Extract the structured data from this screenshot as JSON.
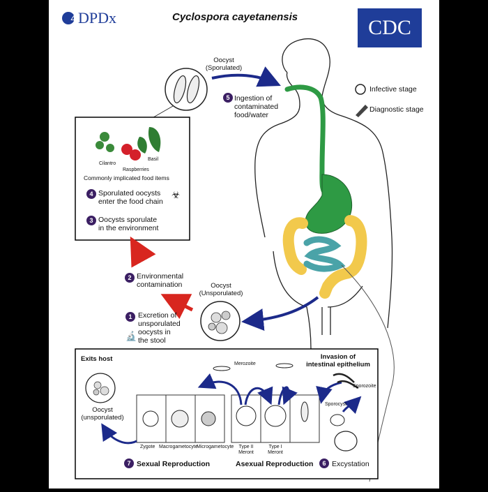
{
  "header": {
    "logo_text": "DPDx",
    "logo_digit": "4",
    "title": "Cyclospora cayetanensis",
    "cdc_logo": "CDC"
  },
  "legend": {
    "infective": "Infective stage",
    "diagnostic": "Diagnostic stage"
  },
  "oocyst_sporulated": "Oocyst\n(Sporulated)",
  "oocyst_unsporulated": "Oocyst\n(Unsporulated)",
  "food": {
    "cilantro": "Cilantro",
    "basil": "Basil",
    "raspberries": "Raspberries",
    "caption": "Commonly implicated food items"
  },
  "steps": [
    {
      "num": "1",
      "text": "Excretion of\nunsporulated\noocysts in\nthe stool"
    },
    {
      "num": "2",
      "text": "Environmental\ncontamination"
    },
    {
      "num": "3",
      "text": "Oocysts sporulate\nin the environment"
    },
    {
      "num": "4",
      "text": "Sporulated oocysts\nenter the food chain"
    },
    {
      "num": "5",
      "text": "Ingestion of\ncontaminated\nfood/water"
    },
    {
      "num": "6",
      "text": "Excystation"
    },
    {
      "num": "7",
      "text": "Sexual Reproduction"
    }
  ],
  "lower_box": {
    "exits_host": "Exits host",
    "invasion": "Invasion of\nintestinal epithelium",
    "merozoite": "Merozoite",
    "sporozoite": "Sporozoite",
    "sporocyst": "Sporocyst",
    "oocyst_unsporulated": "Oocyst\n(unsporulated)",
    "zygote": "Zygote",
    "macrogametocyte": "Macrogametocyte",
    "microgametocyte": "Microgametocyte",
    "type2": "Type II\nMeront",
    "type1": "Type I\nMeront",
    "asexual": "Asexual Reproduction"
  },
  "colors": {
    "stomach": "#2e9a44",
    "colon": "#f2c94c",
    "small_intestine": "#4aa3a8",
    "arrow_blue": "#1c2a8a",
    "arrow_red": "#d8261f",
    "badge": "#3b1f63",
    "cdc_blue": "#1f3d99"
  }
}
